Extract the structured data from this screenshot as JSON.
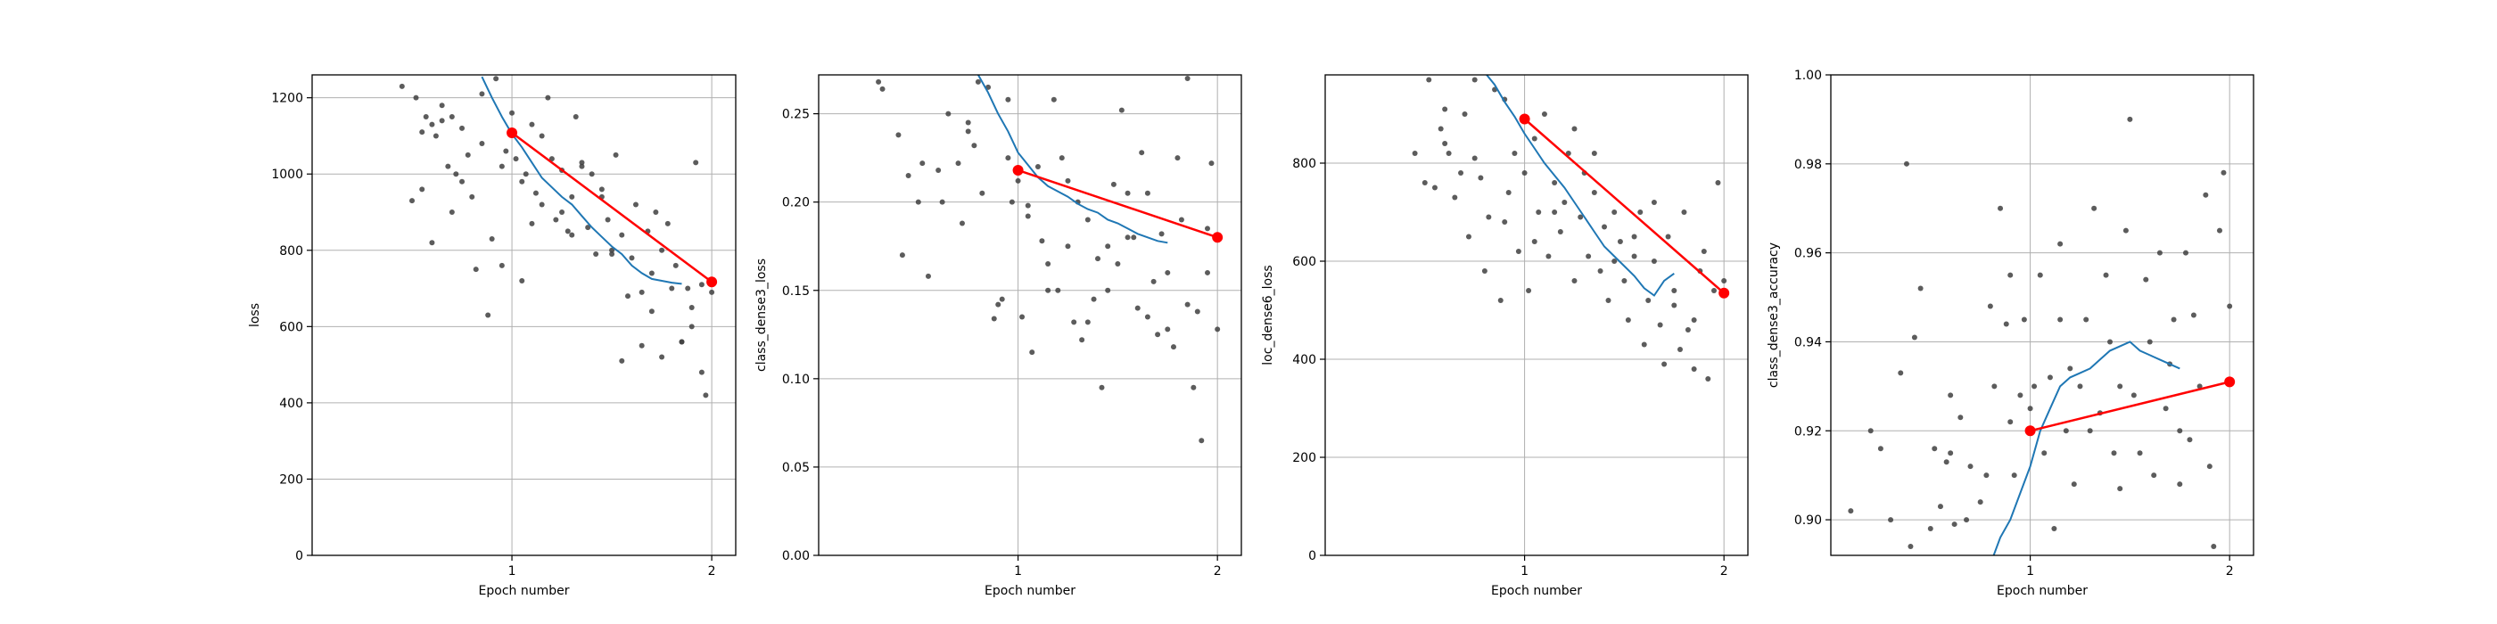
{
  "colors": {
    "scatter": "#404040",
    "smoothed": "#1f77b4",
    "epoch_line": "#ff0000",
    "grid": "#b0b0b0",
    "axes": "#000000"
  },
  "chart_data": [
    {
      "type": "scatter",
      "xlabel": "Epoch number",
      "ylabel": "loss",
      "xlim": [
        0.0,
        2.12
      ],
      "ylim": [
        0,
        1260
      ],
      "xticks": [
        1,
        2
      ],
      "yticks": [
        0,
        200,
        400,
        600,
        800,
        1000,
        1200
      ],
      "ytick_labels": [
        "0",
        "200",
        "400",
        "600",
        "800",
        "1000",
        "1200"
      ],
      "grid": true,
      "epoch_points": {
        "x": [
          1,
          2
        ],
        "y": [
          1108,
          717
        ]
      },
      "smoothed": {
        "x": [
          0.85,
          0.9,
          0.95,
          1.0,
          1.05,
          1.1,
          1.15,
          1.2,
          1.25,
          1.3,
          1.35,
          1.4,
          1.45,
          1.5,
          1.55,
          1.6,
          1.65,
          1.7,
          1.75,
          1.8,
          1.85
        ],
        "y": [
          1255,
          1200,
          1150,
          1105,
          1070,
          1030,
          990,
          965,
          940,
          920,
          890,
          860,
          835,
          810,
          790,
          760,
          740,
          725,
          720,
          715,
          712
        ]
      },
      "points": {
        "x": [
          0.45,
          0.5,
          0.52,
          0.55,
          0.57,
          0.6,
          0.6,
          0.62,
          0.65,
          0.68,
          0.7,
          0.7,
          0.72,
          0.75,
          0.78,
          0.8,
          0.82,
          0.85,
          0.88,
          0.9,
          0.92,
          0.95,
          0.97,
          1.0,
          1.02,
          1.05,
          1.07,
          1.1,
          1.12,
          1.15,
          1.18,
          1.2,
          1.22,
          1.25,
          1.28,
          1.3,
          1.32,
          1.35,
          1.38,
          1.4,
          1.42,
          1.45,
          1.48,
          1.5,
          1.52,
          1.55,
          1.58,
          1.6,
          1.62,
          1.65,
          1.68,
          1.7,
          1.72,
          1.75,
          1.78,
          1.8,
          1.82,
          1.85,
          1.88,
          1.9,
          1.92,
          1.95,
          1.97,
          2.0,
          0.55,
          0.65,
          0.75,
          0.85,
          0.95,
          1.05,
          1.15,
          1.25,
          1.35,
          1.45,
          1.55,
          1.65,
          1.75,
          1.85,
          1.95,
          1.1,
          1.3,
          1.5,
          1.7,
          1.9
        ],
        "y": [
          1230,
          930,
          1200,
          960,
          1150,
          1130,
          820,
          1100,
          1180,
          1020,
          1150,
          900,
          1000,
          1120,
          1050,
          940,
          750,
          1080,
          630,
          830,
          1250,
          760,
          1060,
          1160,
          1040,
          720,
          1000,
          1130,
          950,
          920,
          1200,
          1040,
          880,
          1010,
          850,
          940,
          1150,
          1020,
          860,
          1000,
          790,
          940,
          880,
          800,
          1050,
          840,
          680,
          780,
          920,
          690,
          850,
          740,
          900,
          800,
          870,
          700,
          760,
          560,
          700,
          650,
          1030,
          710,
          420,
          690,
          1110,
          1140,
          980,
          1210,
          1020,
          980,
          1100,
          900,
          1030,
          960,
          510,
          550,
          520,
          560,
          480,
          870,
          840,
          790,
          640,
          600
        ]
      }
    },
    {
      "type": "scatter",
      "xlabel": "Epoch number",
      "ylabel": "class_dense3_loss",
      "xlim": [
        0.0,
        2.12
      ],
      "ylim": [
        0,
        0.272
      ],
      "xticks": [
        1,
        2
      ],
      "yticks": [
        0,
        0.05,
        0.1,
        0.15,
        0.2,
        0.25
      ],
      "ytick_labels": [
        "0.00",
        "0.05",
        "0.10",
        "0.15",
        "0.20",
        "0.25"
      ],
      "grid": true,
      "epoch_points": {
        "x": [
          1,
          2
        ],
        "y": [
          0.218,
          0.18
        ]
      },
      "smoothed": {
        "x": [
          0.8,
          0.85,
          0.9,
          0.95,
          1.0,
          1.05,
          1.1,
          1.15,
          1.2,
          1.25,
          1.3,
          1.35,
          1.4,
          1.45,
          1.5,
          1.55,
          1.6,
          1.65,
          1.7,
          1.75
        ],
        "y": [
          0.272,
          0.262,
          0.25,
          0.24,
          0.228,
          0.221,
          0.214,
          0.209,
          0.206,
          0.203,
          0.199,
          0.196,
          0.194,
          0.19,
          0.188,
          0.185,
          0.182,
          0.18,
          0.178,
          0.177
        ]
      },
      "points": {
        "x": [
          0.3,
          0.32,
          0.4,
          0.42,
          0.45,
          0.5,
          0.52,
          0.55,
          0.6,
          0.62,
          0.65,
          0.7,
          0.72,
          0.75,
          0.78,
          0.8,
          0.82,
          0.85,
          0.88,
          0.9,
          0.92,
          0.95,
          0.97,
          1.0,
          1.02,
          1.05,
          1.07,
          1.1,
          1.12,
          1.15,
          1.18,
          1.2,
          1.22,
          1.25,
          1.28,
          1.3,
          1.32,
          1.35,
          1.38,
          1.4,
          1.42,
          1.45,
          1.48,
          1.5,
          1.52,
          1.55,
          1.58,
          1.6,
          1.62,
          1.65,
          1.68,
          1.7,
          1.72,
          1.75,
          1.78,
          1.8,
          1.82,
          1.85,
          1.88,
          1.9,
          1.92,
          1.95,
          1.97,
          2.0,
          0.75,
          0.95,
          1.05,
          1.25,
          1.45,
          1.65,
          1.85,
          1.15,
          1.35,
          1.55,
          1.75,
          1.95
        ],
        "y": [
          0.268,
          0.264,
          0.238,
          0.17,
          0.215,
          0.2,
          0.222,
          0.158,
          0.218,
          0.2,
          0.25,
          0.222,
          0.188,
          0.245,
          0.232,
          0.268,
          0.205,
          0.265,
          0.134,
          0.142,
          0.145,
          0.258,
          0.2,
          0.212,
          0.135,
          0.192,
          0.115,
          0.22,
          0.178,
          0.165,
          0.258,
          0.15,
          0.225,
          0.175,
          0.132,
          0.2,
          0.122,
          0.19,
          0.145,
          0.168,
          0.095,
          0.15,
          0.21,
          0.165,
          0.252,
          0.205,
          0.18,
          0.14,
          0.228,
          0.135,
          0.155,
          0.125,
          0.182,
          0.16,
          0.118,
          0.225,
          0.19,
          0.142,
          0.095,
          0.138,
          0.065,
          0.185,
          0.222,
          0.128,
          0.24,
          0.225,
          0.198,
          0.212,
          0.175,
          0.205,
          0.27,
          0.15,
          0.132,
          0.18,
          0.128,
          0.16
        ]
      }
    },
    {
      "type": "scatter",
      "xlabel": "Epoch number",
      "ylabel": "loc_dense6_loss",
      "xlim": [
        0.0,
        2.12
      ],
      "ylim": [
        0,
        980
      ],
      "xticks": [
        1,
        2
      ],
      "yticks": [
        0,
        200,
        400,
        600,
        800
      ],
      "ytick_labels": [
        "0",
        "200",
        "400",
        "600",
        "800"
      ],
      "grid": true,
      "epoch_points": {
        "x": [
          1,
          2
        ],
        "y": [
          890,
          535
        ]
      },
      "smoothed": {
        "x": [
          0.8,
          0.85,
          0.9,
          0.95,
          1.0,
          1.05,
          1.1,
          1.15,
          1.2,
          1.25,
          1.3,
          1.35,
          1.4,
          1.45,
          1.5,
          1.55,
          1.6,
          1.65,
          1.7,
          1.75
        ],
        "y": [
          985,
          960,
          925,
          895,
          860,
          830,
          800,
          775,
          750,
          720,
          690,
          660,
          630,
          610,
          590,
          570,
          545,
          530,
          560,
          575
        ]
      },
      "points": {
        "x": [
          0.45,
          0.5,
          0.52,
          0.55,
          0.58,
          0.6,
          0.62,
          0.65,
          0.68,
          0.7,
          0.72,
          0.75,
          0.78,
          0.8,
          0.82,
          0.85,
          0.88,
          0.9,
          0.92,
          0.95,
          0.97,
          1.0,
          1.02,
          1.05,
          1.07,
          1.1,
          1.12,
          1.15,
          1.18,
          1.2,
          1.22,
          1.25,
          1.28,
          1.3,
          1.32,
          1.35,
          1.38,
          1.4,
          1.42,
          1.45,
          1.48,
          1.5,
          1.52,
          1.55,
          1.58,
          1.6,
          1.62,
          1.65,
          1.68,
          1.7,
          1.72,
          1.75,
          1.78,
          1.8,
          1.82,
          1.85,
          1.88,
          1.9,
          1.92,
          1.95,
          1.97,
          2.0,
          0.6,
          0.75,
          0.9,
          1.05,
          1.25,
          1.45,
          1.65,
          1.85,
          1.15,
          1.35,
          1.55,
          1.75
        ],
        "y": [
          820,
          760,
          970,
          750,
          870,
          840,
          820,
          730,
          780,
          900,
          650,
          810,
          770,
          580,
          690,
          950,
          520,
          680,
          740,
          820,
          620,
          780,
          540,
          850,
          700,
          900,
          610,
          760,
          660,
          720,
          820,
          560,
          690,
          780,
          610,
          740,
          580,
          670,
          520,
          700,
          640,
          560,
          480,
          610,
          700,
          430,
          520,
          600,
          470,
          390,
          650,
          510,
          420,
          700,
          460,
          380,
          580,
          620,
          360,
          540,
          760,
          560,
          910,
          970,
          930,
          640,
          870,
          600,
          720,
          480,
          700,
          820,
          650,
          540
        ]
      }
    },
    {
      "type": "scatter",
      "xlabel": "Epoch number",
      "ylabel": "class_dense3_accuracy",
      "xlim": [
        0.0,
        2.12
      ],
      "ylim": [
        0.892,
        1.0
      ],
      "xticks": [
        1,
        2
      ],
      "yticks": [
        0.9,
        0.92,
        0.94,
        0.96,
        0.98,
        1.0
      ],
      "ytick_labels": [
        "0.90",
        "0.92",
        "0.94",
        "0.96",
        "0.98",
        "1.00"
      ],
      "grid": true,
      "epoch_points": {
        "x": [
          1,
          2
        ],
        "y": [
          0.92,
          0.931
        ]
      },
      "smoothed": {
        "x": [
          0.8,
          0.85,
          0.9,
          0.95,
          1.0,
          1.05,
          1.1,
          1.15,
          1.2,
          1.25,
          1.3,
          1.35,
          1.4,
          1.45,
          1.5,
          1.55,
          1.6,
          1.65,
          1.7,
          1.75
        ],
        "y": [
          0.89,
          0.896,
          0.9,
          0.906,
          0.912,
          0.92,
          0.925,
          0.93,
          0.932,
          0.933,
          0.934,
          0.936,
          0.938,
          0.939,
          0.94,
          0.938,
          0.937,
          0.936,
          0.935,
          0.934
        ]
      },
      "points": {
        "x": [
          0.1,
          0.2,
          0.25,
          0.3,
          0.35,
          0.38,
          0.4,
          0.42,
          0.45,
          0.5,
          0.52,
          0.55,
          0.58,
          0.6,
          0.62,
          0.65,
          0.68,
          0.7,
          0.72,
          0.75,
          0.78,
          0.8,
          0.82,
          0.85,
          0.88,
          0.9,
          0.92,
          0.95,
          0.97,
          1.0,
          1.02,
          1.05,
          1.07,
          1.1,
          1.12,
          1.15,
          1.18,
          1.2,
          1.22,
          1.25,
          1.28,
          1.3,
          1.32,
          1.35,
          1.38,
          1.4,
          1.42,
          1.45,
          1.48,
          1.5,
          1.52,
          1.55,
          1.58,
          1.6,
          1.62,
          1.65,
          1.68,
          1.7,
          1.72,
          1.75,
          1.78,
          1.8,
          1.82,
          1.85,
          1.88,
          1.9,
          1.92,
          1.95,
          1.97,
          2.0,
          0.6,
          0.9,
          1.15,
          1.45,
          1.75
        ],
        "y": [
          0.902,
          0.92,
          0.916,
          0.9,
          0.933,
          0.98,
          0.894,
          0.941,
          0.952,
          0.898,
          0.916,
          0.903,
          0.913,
          0.928,
          0.899,
          0.923,
          0.9,
          0.912,
          0.89,
          0.904,
          0.91,
          0.948,
          0.93,
          0.97,
          0.944,
          0.955,
          0.91,
          0.928,
          0.945,
          0.925,
          0.93,
          0.955,
          0.915,
          0.932,
          0.898,
          0.962,
          0.92,
          0.934,
          0.908,
          0.93,
          0.945,
          0.92,
          0.97,
          0.924,
          0.955,
          0.94,
          0.915,
          0.93,
          0.965,
          0.99,
          0.928,
          0.915,
          0.954,
          0.94,
          0.91,
          0.96,
          0.925,
          0.935,
          0.945,
          0.908,
          0.96,
          0.918,
          0.946,
          0.93,
          0.973,
          0.912,
          0.894,
          0.965,
          0.978,
          0.948,
          0.915,
          0.922,
          0.945,
          0.907,
          0.92
        ]
      }
    }
  ]
}
